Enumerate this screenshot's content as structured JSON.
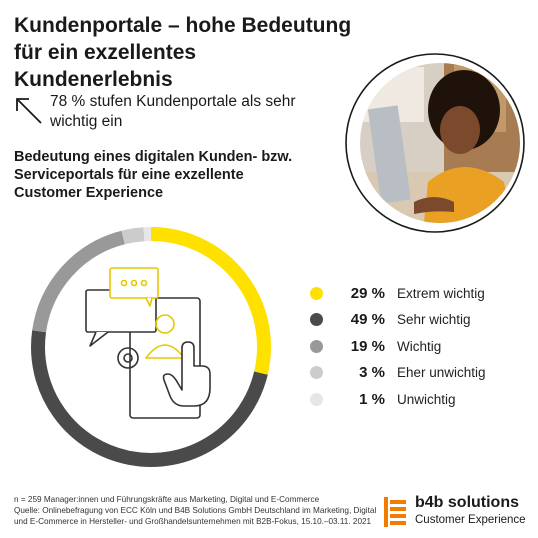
{
  "title": "Kundenportale – hohe Bedeutung für ein exzellentes Kundenerlebnis",
  "headline": "78 % stufen Kundenportale als sehr wichtig ein",
  "colors": {
    "accent": "#ffe100",
    "dark": "#4a4a4a",
    "mid": "#999999",
    "light": "#cccccc",
    "lightest": "#e6e6e6"
  },
  "chart_data": {
    "type": "pie",
    "title": "Bedeutung eines digitalen Kunden- bzw. Serviceportals für eine exzellente Customer Experience",
    "categories": [
      "Extrem wichtig",
      "Sehr wichtig",
      "Wichtig",
      "Eher unwichtig",
      "Unwichtig"
    ],
    "values": [
      29,
      49,
      19,
      3,
      1
    ],
    "labels": [
      "29 %",
      "49 %",
      "19 %",
      "3 %",
      "1 %"
    ],
    "colors": [
      "#ffe100",
      "#4a4a4a",
      "#999999",
      "#cccccc",
      "#e6e6e6"
    ],
    "unit": "%",
    "legend": "right"
  },
  "footnote": {
    "sample": "n = 259 Manager:innen und Führungskräfte aus Marketing, Digital und E-Commerce",
    "source": "Quelle: Onlinebefragung von ECC Köln und B4B Solutions GmbH Deutschland im Marketing, Digital und E-Commerce in Hersteller- und Großhandelsunternehmen mit B2B-Fokus, 15.10.–03.11. 2021"
  },
  "brand": {
    "name": "b4b solutions",
    "tagline": "Customer Experience"
  },
  "icons": {
    "arrow": "arrow-up-left-icon",
    "center": "portal-touch-icon"
  }
}
